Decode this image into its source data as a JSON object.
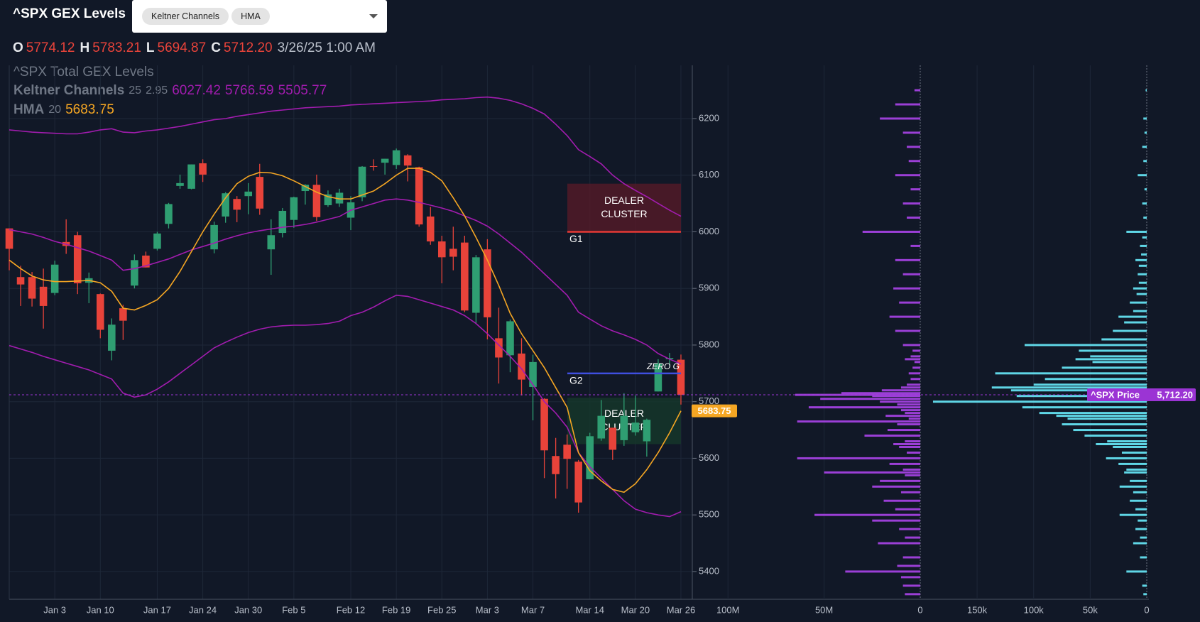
{
  "header": {
    "title": "^SPX GEX Levels",
    "chips": [
      "Keltner Channels",
      "HMA"
    ],
    "ohlc": [
      {
        "key": "O",
        "value": "5774.12"
      },
      {
        "key": "H",
        "value": "5783.21"
      },
      {
        "key": "L",
        "value": "5694.87"
      },
      {
        "key": "C",
        "value": "5712.20"
      }
    ],
    "timestamp": "3/26/25 1:00 AM"
  },
  "chart_data": [
    {
      "type": "candlestick",
      "legend_title": "^SPX Total GEX Levels",
      "categories": [
        null,
        null,
        null,
        null,
        "Jan 3",
        null,
        null,
        null,
        "Jan 10",
        null,
        null,
        null,
        null,
        "Jan 17",
        null,
        null,
        null,
        "Jan 24",
        null,
        null,
        null,
        "Jan 30",
        null,
        null,
        null,
        "Feb 5",
        null,
        null,
        null,
        null,
        "Feb 12",
        null,
        null,
        null,
        "Feb 19",
        null,
        null,
        null,
        "Feb 25",
        null,
        null,
        null,
        "Mar 3",
        null,
        null,
        null,
        "Mar 7",
        null,
        null,
        null,
        null,
        "Mar 14",
        null,
        null,
        null,
        "Mar 20",
        null,
        null,
        null,
        "Mar 26"
      ],
      "open": [
        6006,
        5920,
        5920,
        5903,
        5892,
        5982,
        5994,
        5910,
        5890,
        5790,
        5865,
        5905,
        5958,
        5970,
        6014,
        6081,
        6076,
        6121,
        5969,
        6027,
        6058,
        6063,
        6097,
        5969,
        5998,
        6021,
        6072,
        6083,
        6047,
        6050,
        6025,
        6061,
        6116,
        6122,
        6118,
        6135,
        6114,
        6027,
        5983,
        5970,
        5981,
        5857,
        5969,
        5812,
        5782,
        5785,
        5726,
        5705,
        5604,
        5624,
        5594,
        5563,
        5635,
        5654,
        5632,
        5646,
        5630,
        5718,
        5775,
        5774.12
      ],
      "high": [
        6006,
        5940,
        5929,
        5935,
        5949,
        6022,
        6000,
        5928,
        5891,
        5847,
        5871,
        5960,
        5965,
        6000,
        6051,
        6101,
        6119,
        6128,
        6018,
        6070,
        6063,
        6086,
        6120,
        6022,
        6042,
        6062,
        6084,
        6101,
        6073,
        6076,
        6063,
        6116,
        6128,
        6129,
        6147,
        6137,
        6115,
        6044,
        5993,
        6009,
        5993,
        5959,
        5987,
        5866,
        5845,
        5812,
        5783,
        5706,
        5636,
        5642,
        5597,
        5645,
        5703,
        5654,
        5715,
        5711,
        5670,
        5775,
        5786,
        5783.21
      ],
      "low": [
        5932,
        5869,
        5868,
        5829,
        5888,
        5961,
        5890,
        5874,
        5812,
        5773,
        5809,
        5900,
        5937,
        5967,
        6006,
        6076,
        6075,
        6088,
        5962,
        6016,
        6017,
        6031,
        6030,
        5924,
        5990,
        6007,
        6048,
        6019,
        6044,
        6044,
        6003,
        6054,
        6108,
        6101,
        6111,
        6089,
        6009,
        5977,
        5909,
        5932,
        5858,
        5837,
        5810,
        5732,
        5752,
        5711,
        5667,
        5565,
        5529,
        5546,
        5504,
        5563,
        5631,
        5597,
        5622,
        5640,
        5603,
        5718,
        5764,
        5694.87
      ],
      "close": [
        5970,
        5907,
        5882,
        5869,
        5942,
        5975,
        5909,
        5918,
        5827,
        5836,
        5843,
        5950,
        5937,
        5997,
        6049,
        6086,
        6119,
        6101,
        6012,
        6068,
        6039,
        6071,
        6041,
        5994,
        6037,
        6061,
        6083,
        6026,
        6066,
        6069,
        6052,
        6115,
        6115,
        6129,
        6144,
        6117,
        6013,
        5983,
        5955,
        5956,
        5861,
        5955,
        5849,
        5778,
        5842,
        5739,
        5770,
        5614,
        5572,
        5599,
        5522,
        5639,
        5675,
        5615,
        5675,
        5663,
        5668,
        5767,
        5777,
        5712.2
      ],
      "up_color": "#2f9e72",
      "down_color": "#e8433a",
      "ylim": [
        5351,
        6294
      ],
      "yticks": [
        5400,
        5500,
        5600,
        5700,
        5800,
        5900,
        6000,
        6100,
        6200
      ],
      "grid": true,
      "keltner": {
        "name": "Keltner Channels",
        "params": [
          25,
          2.95
        ],
        "color": "#a21caf",
        "upper": [
          6180,
          6178,
          6176,
          6175,
          6174,
          6173,
          6173,
          6176,
          6180,
          6182,
          6176,
          6175,
          6178,
          6180,
          6183,
          6186,
          6190,
          6194,
          6198,
          6200,
          6204,
          6207,
          6210,
          6213,
          6215,
          6217,
          6219,
          6220,
          6221,
          6222,
          6224,
          6225,
          6226,
          6227,
          6228,
          6229,
          6230,
          6231,
          6233,
          6234,
          6235,
          6237,
          6238,
          6236,
          6232,
          6226,
          6218,
          6208,
          6190,
          6170,
          6145,
          6133,
          6120,
          6100,
          6085,
          6073,
          6062,
          6050,
          6038,
          6027.42
        ],
        "middle": [
          6004,
          6000,
          5996,
          5990,
          5983,
          5978,
          5972,
          5966,
          5958,
          5950,
          5932,
          5935,
          5940,
          5946,
          5952,
          5960,
          5968,
          5974,
          5980,
          5987,
          5993,
          5998,
          6002,
          6005,
          6008,
          6010,
          6013,
          6017,
          6022,
          6027,
          6038,
          6044,
          6050,
          6056,
          6058,
          6056,
          6052,
          6047,
          6042,
          6036,
          6028,
          6020,
          6010,
          5996,
          5980,
          5964,
          5945,
          5926,
          5907,
          5888,
          5858,
          5846,
          5834,
          5825,
          5818,
          5810,
          5800,
          5785,
          5775,
          5766.59
        ],
        "lower": [
          5799,
          5793,
          5787,
          5780,
          5774,
          5768,
          5762,
          5756,
          5748,
          5740,
          5715,
          5708,
          5712,
          5722,
          5735,
          5750,
          5765,
          5780,
          5795,
          5805,
          5814,
          5822,
          5828,
          5832,
          5834,
          5835,
          5835,
          5836,
          5838,
          5842,
          5852,
          5858,
          5867,
          5878,
          5888,
          5886,
          5880,
          5874,
          5868,
          5862,
          5852,
          5838,
          5820,
          5800,
          5780,
          5758,
          5730,
          5700,
          5680,
          5655,
          5610,
          5585,
          5565,
          5545,
          5525,
          5510,
          5504,
          5500,
          5497,
          5505.77
        ]
      },
      "hma": {
        "name": "HMA",
        "params": [
          20
        ],
        "color": "#f5a623",
        "values": [
          5950,
          5935,
          5922,
          5915,
          5912,
          5912,
          5913,
          5914,
          5910,
          5895,
          5865,
          5862,
          5870,
          5880,
          5900,
          5930,
          5965,
          6000,
          6031,
          6060,
          6085,
          6098,
          6105,
          6104,
          6099,
          6090,
          6080,
          6070,
          6062,
          6058,
          6058,
          6065,
          6072,
          6085,
          6100,
          6112,
          6112,
          6105,
          6090,
          6060,
          6028,
          5990,
          5950,
          5905,
          5856,
          5820,
          5790,
          5760,
          5725,
          5690,
          5610,
          5578,
          5560,
          5545,
          5540,
          5555,
          5580,
          5610,
          5645,
          5683.75
        ]
      },
      "zones": [
        {
          "text": [
            "DEALER",
            "CLUSTER"
          ],
          "top": 6085,
          "bottom": 6000,
          "color": "#5a1a28"
        },
        {
          "text": [
            "DEALER",
            "CLUSTER"
          ],
          "top": 5707,
          "bottom": 5625,
          "color": "#163a2b"
        }
      ],
      "levels": [
        {
          "label": "G1",
          "value": 6000,
          "color": "#e53935"
        },
        {
          "label": "G2",
          "value": 5750,
          "color": "#3f4fe0",
          "note": "ZERO G"
        }
      ],
      "price_line": {
        "label": "^SPX Price",
        "value": 5712.2,
        "value_label": "5,712.20",
        "color": "#9b34d4"
      }
    },
    {
      "type": "barh",
      "color": "#9b3fd6",
      "xlim": [
        113,
        0
      ],
      "xticks": [
        {
          "value": 100,
          "label": "100M"
        },
        {
          "value": 50,
          "label": "50M"
        },
        0
      ],
      "strikes": [
        6250,
        6225,
        6200,
        6175,
        6150,
        6125,
        6100,
        6075,
        6050,
        6025,
        6000,
        5975,
        5950,
        5925,
        5900,
        5875,
        5850,
        5825,
        5800,
        5790,
        5780,
        5775,
        5770,
        5760,
        5750,
        5740,
        5730,
        5725,
        5720,
        5715,
        5712,
        5710,
        5705,
        5700,
        5695,
        5690,
        5685,
        5680,
        5675,
        5670,
        5665,
        5660,
        5650,
        5640,
        5630,
        5625,
        5620,
        5610,
        5600,
        5590,
        5580,
        5575,
        5570,
        5560,
        5550,
        5540,
        5525,
        5510,
        5500,
        5490,
        5475,
        5460,
        5450,
        5425,
        5410,
        5400,
        5390,
        5375,
        5360
      ],
      "values": [
        3,
        13,
        21,
        9,
        7,
        6,
        13,
        5,
        9,
        7,
        30,
        5,
        13,
        9,
        14,
        11,
        16,
        13,
        9,
        4,
        5,
        8,
        3,
        4,
        6,
        5,
        7,
        10,
        20,
        41,
        65,
        25,
        52,
        21,
        12,
        58,
        10,
        8,
        18,
        6,
        64,
        12,
        17,
        29,
        8,
        14,
        11,
        7,
        64,
        16,
        9,
        50,
        8,
        21,
        25,
        10,
        19,
        13,
        55,
        25,
        11,
        8,
        22,
        9,
        12,
        39,
        10,
        9,
        8
      ]
    },
    {
      "type": "barh",
      "color": "#5fd6e6",
      "xlim": [
        194,
        0
      ],
      "xticks": [
        {
          "value": 150,
          "label": "150k"
        },
        {
          "value": 100,
          "label": "100k"
        },
        {
          "value": 50,
          "label": "50k"
        },
        0
      ],
      "strikes": [
        6250,
        6200,
        6175,
        6150,
        6125,
        6100,
        6075,
        6050,
        6025,
        6000,
        5990,
        5975,
        5960,
        5950,
        5940,
        5925,
        5910,
        5900,
        5890,
        5875,
        5860,
        5850,
        5840,
        5825,
        5810,
        5800,
        5790,
        5780,
        5775,
        5770,
        5760,
        5750,
        5740,
        5730,
        5725,
        5720,
        5710,
        5700,
        5690,
        5680,
        5675,
        5670,
        5660,
        5650,
        5640,
        5630,
        5625,
        5620,
        5610,
        5600,
        5590,
        5580,
        5575,
        5560,
        5550,
        5540,
        5525,
        5510,
        5500,
        5490,
        5475,
        5460,
        5450,
        5425,
        5400,
        5375,
        5360
      ],
      "values": [
        1,
        3,
        2,
        4,
        3,
        8,
        2,
        4,
        3,
        18,
        4,
        6,
        5,
        10,
        7,
        8,
        7,
        12,
        9,
        15,
        12,
        25,
        20,
        30,
        40,
        108,
        60,
        50,
        63,
        48,
        75,
        134,
        90,
        100,
        137,
        120,
        115,
        189,
        110,
        95,
        80,
        70,
        75,
        65,
        55,
        35,
        45,
        30,
        22,
        36,
        25,
        18,
        20,
        15,
        24,
        12,
        15,
        10,
        24,
        8,
        10,
        6,
        12,
        6,
        18,
        4,
        3
      ]
    }
  ]
}
